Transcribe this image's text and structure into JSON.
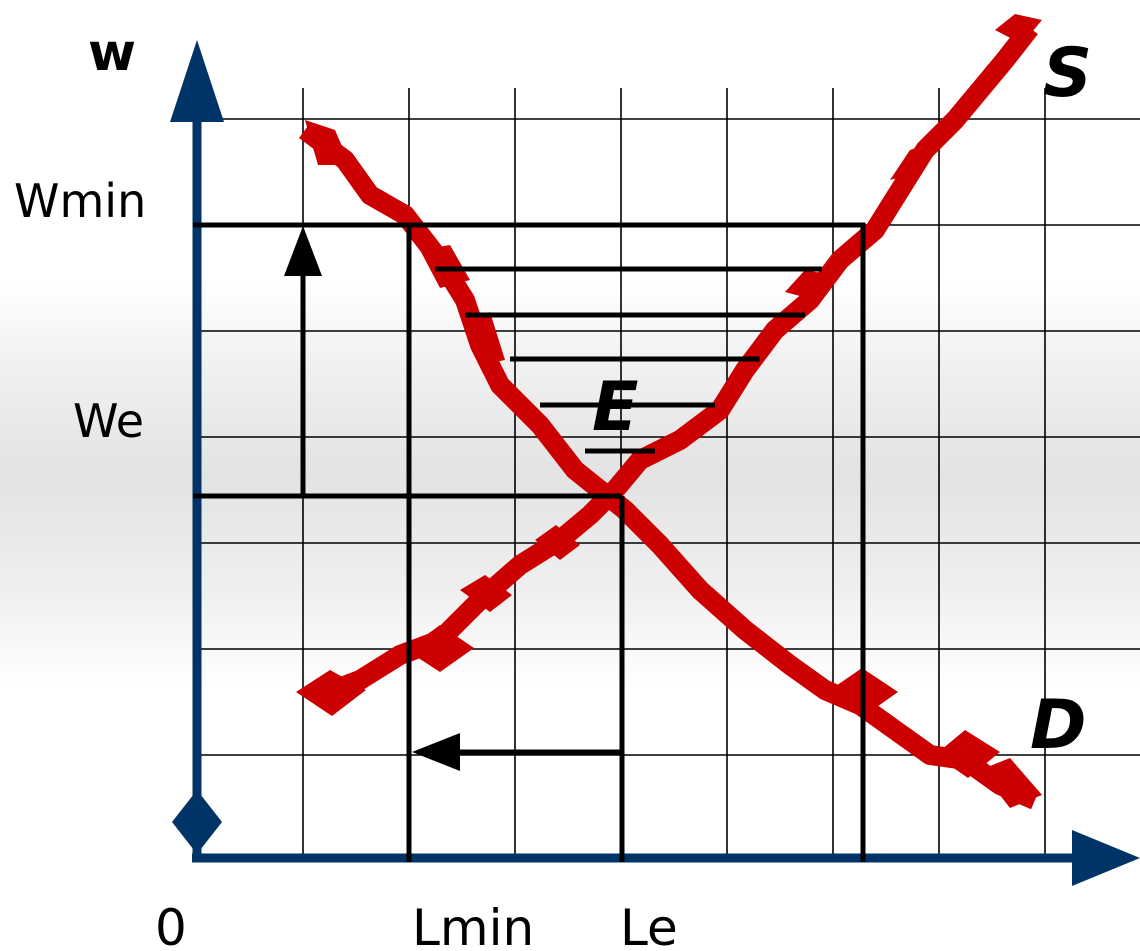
{
  "labels": {
    "y_axis": "w",
    "x_axis_origin": "0",
    "y_tick_wmin": "Wmin",
    "y_tick_we": "We",
    "x_tick_lmin": "Lmin",
    "x_tick_le": "Le",
    "curve_supply": "S",
    "curve_demand": "D",
    "equilibrium": "E"
  },
  "colors": {
    "axis": "#003366",
    "curves": "#cc0000",
    "lines": "#000000",
    "grid": "#000000"
  },
  "icons": {
    "axis_heads": "triangle-arrow",
    "origin_marker": "diamond",
    "guide_arrows": "triangle-arrow"
  }
}
